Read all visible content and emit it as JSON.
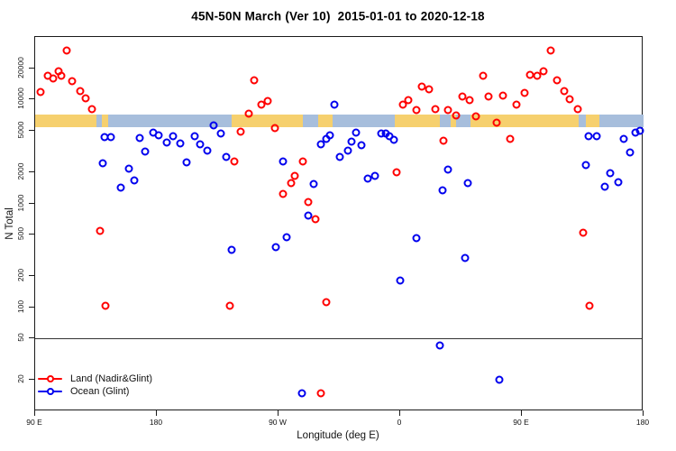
{
  "title": "45N-50N March (Ver 10)  2015-01-01 to 2020-12-18",
  "chart_data": {
    "type": "scatter",
    "title": "45N-50N March (Ver 10)  2015-01-01 to 2020-12-18",
    "xlabel": "Longitude (deg E)",
    "ylabel": "N Total",
    "x_scale": {
      "min": 90,
      "max": 540,
      "ticks": [
        {
          "lon": 90,
          "label": "90 E"
        },
        {
          "lon": 180,
          "label": "180"
        },
        {
          "lon": 270,
          "label": "90 W"
        },
        {
          "lon": 360,
          "label": "0"
        },
        {
          "lon": 450,
          "label": "90 E"
        },
        {
          "lon": 540,
          "label": "180"
        }
      ]
    },
    "y_scale": {
      "type": "log",
      "min": 10,
      "max": 40000,
      "ticks": [
        20,
        50,
        100,
        200,
        500,
        1000,
        2000,
        5000,
        10000,
        20000
      ]
    },
    "reference_line_y": 50,
    "map_band": {
      "n_range": [
        5400,
        7200
      ],
      "land_color": "#F6D06E",
      "ocean_color": "#A7BEDC",
      "segments": [
        {
          "from": 90,
          "to": 135,
          "type": "land"
        },
        {
          "from": 135,
          "to": 139,
          "type": "ocean"
        },
        {
          "from": 139,
          "to": 144,
          "type": "land"
        },
        {
          "from": 144,
          "to": 235,
          "type": "ocean"
        },
        {
          "from": 235,
          "to": 288,
          "type": "land"
        },
        {
          "from": 288,
          "to": 299,
          "type": "ocean"
        },
        {
          "from": 299,
          "to": 310,
          "type": "land"
        },
        {
          "from": 310,
          "to": 356,
          "type": "ocean"
        },
        {
          "from": 356,
          "to": 389,
          "type": "land"
        },
        {
          "from": 389,
          "to": 397,
          "type": "ocean"
        },
        {
          "from": 397,
          "to": 401,
          "type": "land"
        },
        {
          "from": 401,
          "to": 412,
          "type": "ocean"
        },
        {
          "from": 412,
          "to": 492,
          "type": "land"
        },
        {
          "from": 492,
          "to": 497,
          "type": "ocean"
        },
        {
          "from": 497,
          "to": 507,
          "type": "land"
        },
        {
          "from": 507,
          "to": 540,
          "type": "ocean"
        }
      ]
    },
    "series": [
      {
        "name": "Land (Nadir&Glint)",
        "color": "#FF0000",
        "points": [
          [
            94,
            11800
          ],
          [
            99,
            17100
          ],
          [
            103,
            16100
          ],
          [
            107,
            18800
          ],
          [
            109,
            17100
          ],
          [
            113,
            29500
          ],
          [
            117,
            15000
          ],
          [
            123,
            12100
          ],
          [
            127,
            10300
          ],
          [
            132,
            8100
          ],
          [
            138,
            545
          ],
          [
            142,
            103
          ],
          [
            234,
            103
          ],
          [
            237,
            2530
          ],
          [
            242,
            4950
          ],
          [
            248,
            7350
          ],
          [
            252,
            15300
          ],
          [
            257,
            8900
          ],
          [
            262,
            9700
          ],
          [
            267,
            5300
          ],
          [
            273,
            1230
          ],
          [
            279,
            1560
          ],
          [
            282,
            1840
          ],
          [
            288,
            2530
          ],
          [
            292,
            1040
          ],
          [
            297,
            700
          ],
          [
            301,
            15
          ],
          [
            305,
            112
          ],
          [
            357,
            2000
          ],
          [
            362,
            9000
          ],
          [
            366,
            9900
          ],
          [
            372,
            7900
          ],
          [
            376,
            13300
          ],
          [
            381,
            12500
          ],
          [
            386,
            8100
          ],
          [
            392,
            4000
          ],
          [
            395,
            7900
          ],
          [
            401,
            7000
          ],
          [
            406,
            10700
          ],
          [
            411,
            9800
          ],
          [
            416,
            6900
          ],
          [
            421,
            16800
          ],
          [
            425,
            10800
          ],
          [
            431,
            6050
          ],
          [
            436,
            11000
          ],
          [
            441,
            4150
          ],
          [
            446,
            8900
          ],
          [
            452,
            11700
          ],
          [
            456,
            17400
          ],
          [
            461,
            16800
          ],
          [
            466,
            18900
          ],
          [
            471,
            29500
          ],
          [
            476,
            15200
          ],
          [
            481,
            12000
          ],
          [
            485,
            10100
          ],
          [
            491,
            8100
          ],
          [
            495,
            520
          ],
          [
            500,
            103
          ]
        ]
      },
      {
        "name": "Ocean (Glint)",
        "color": "#0000EE",
        "points": [
          [
            140,
            2440
          ],
          [
            141,
            4350
          ],
          [
            146,
            4350
          ],
          [
            153,
            1430
          ],
          [
            159,
            2160
          ],
          [
            163,
            1660
          ],
          [
            167,
            4250
          ],
          [
            171,
            3130
          ],
          [
            177,
            4800
          ],
          [
            181,
            4550
          ],
          [
            187,
            3850
          ],
          [
            192,
            4400
          ],
          [
            197,
            3750
          ],
          [
            202,
            2500
          ],
          [
            208,
            4400
          ],
          [
            212,
            3700
          ],
          [
            217,
            3200
          ],
          [
            222,
            5600
          ],
          [
            227,
            4700
          ],
          [
            231,
            2820
          ],
          [
            235,
            360
          ],
          [
            268,
            380
          ],
          [
            273,
            2530
          ],
          [
            276,
            475
          ],
          [
            287,
            15
          ],
          [
            292,
            760
          ],
          [
            296,
            1530
          ],
          [
            301,
            3700
          ],
          [
            305,
            4150
          ],
          [
            308,
            4500
          ],
          [
            311,
            9000
          ],
          [
            315,
            2800
          ],
          [
            321,
            3200
          ],
          [
            324,
            3900
          ],
          [
            327,
            4850
          ],
          [
            331,
            3600
          ],
          [
            336,
            1730
          ],
          [
            341,
            1840
          ],
          [
            346,
            4750
          ],
          [
            349,
            4700
          ],
          [
            352,
            4450
          ],
          [
            355,
            4100
          ],
          [
            360,
            180
          ],
          [
            372,
            460
          ],
          [
            389,
            43
          ],
          [
            391,
            1350
          ],
          [
            395,
            2100
          ],
          [
            408,
            300
          ],
          [
            410,
            1570
          ],
          [
            433,
            20
          ],
          [
            497,
            2350
          ],
          [
            499,
            4400
          ],
          [
            505,
            4400
          ],
          [
            511,
            1450
          ],
          [
            515,
            1950
          ],
          [
            521,
            1600
          ],
          [
            525,
            4200
          ],
          [
            530,
            3100
          ],
          [
            534,
            4800
          ],
          [
            537,
            5000
          ]
        ]
      }
    ],
    "legend": {
      "position": "bottom-left",
      "entries": [
        "Land (Nadir&Glint)",
        "Ocean (Glint)"
      ]
    }
  }
}
